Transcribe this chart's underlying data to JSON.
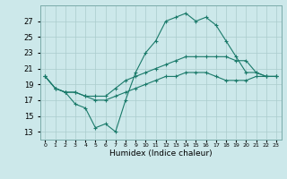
{
  "xlabel": "Humidex (Indice chaleur)",
  "x": [
    0,
    1,
    2,
    3,
    4,
    5,
    6,
    7,
    8,
    9,
    10,
    11,
    12,
    13,
    14,
    15,
    16,
    17,
    18,
    19,
    20,
    21,
    22,
    23
  ],
  "line_max": [
    20.0,
    18.5,
    18.0,
    16.5,
    16.0,
    13.5,
    14.0,
    13.0,
    17.0,
    20.5,
    23.0,
    24.5,
    27.0,
    27.5,
    28.0,
    27.0,
    27.5,
    26.5,
    24.5,
    22.5,
    20.5,
    20.5,
    20.0,
    20.0
  ],
  "line_mid": [
    20.0,
    18.5,
    18.0,
    18.0,
    17.5,
    17.5,
    17.5,
    18.5,
    19.5,
    20.0,
    20.5,
    21.0,
    21.5,
    22.0,
    22.5,
    22.5,
    22.5,
    22.5,
    22.5,
    22.0,
    22.0,
    20.5,
    20.0,
    20.0
  ],
  "line_min": [
    20.0,
    18.5,
    18.0,
    18.0,
    17.5,
    17.0,
    17.0,
    17.5,
    18.0,
    18.5,
    19.0,
    19.5,
    20.0,
    20.0,
    20.5,
    20.5,
    20.5,
    20.0,
    19.5,
    19.5,
    19.5,
    20.0,
    20.0,
    20.0
  ],
  "color": "#1a7a6a",
  "bg_color": "#cce8ea",
  "grid_color": "#aacccc",
  "ylim": [
    12,
    29
  ],
  "yticks": [
    13,
    15,
    17,
    19,
    21,
    23,
    25,
    27
  ],
  "xlim": [
    -0.5,
    23.5
  ],
  "figwidth": 3.2,
  "figheight": 2.0,
  "dpi": 100
}
